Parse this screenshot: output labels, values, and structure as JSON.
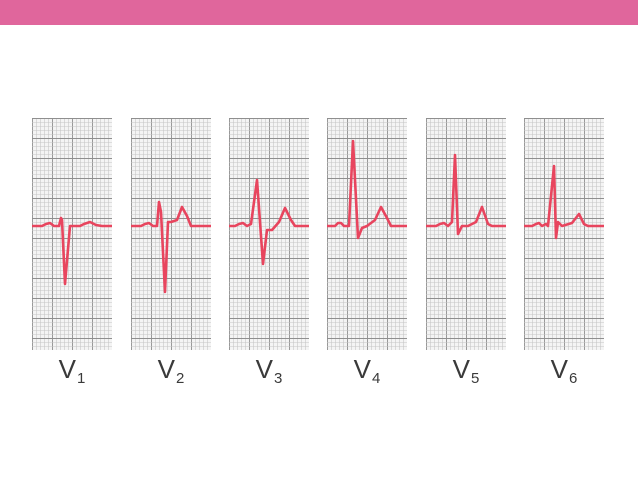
{
  "colors": {
    "top_bar": "#e0669c",
    "grid_minor": "#c6c6c6",
    "grid_major": "#8f8f8f",
    "grid_background": "#f4f4f4",
    "trace": "#e8455e",
    "label_text": "#3a3a3a"
  },
  "leads": [
    {
      "letter": "V",
      "number": "1"
    },
    {
      "letter": "V",
      "number": "2"
    },
    {
      "letter": "V",
      "number": "3"
    },
    {
      "letter": "V",
      "number": "4"
    },
    {
      "letter": "V",
      "number": "5"
    },
    {
      "letter": "V",
      "number": "6"
    }
  ]
}
